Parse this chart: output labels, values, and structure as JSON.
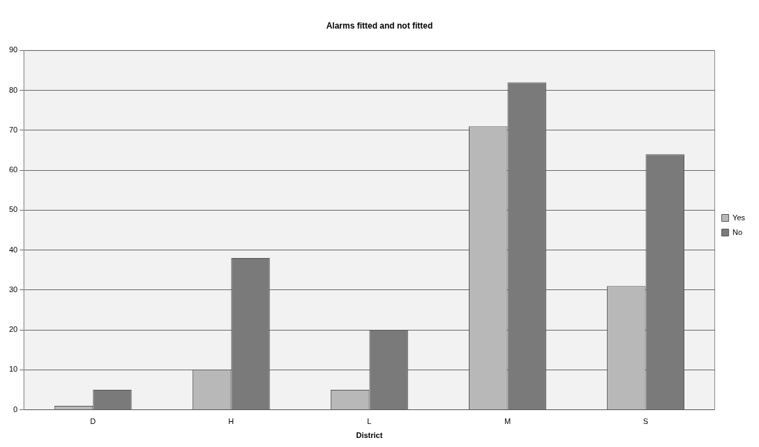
{
  "chart_data": {
    "type": "bar",
    "title": "Alarms fitted and not fitted",
    "xlabel": "District",
    "categories": [
      "D",
      "H",
      "L",
      "M",
      "S"
    ],
    "series": [
      {
        "name": "Yes",
        "color": "#b8b8b8",
        "values": [
          1,
          10,
          5,
          71,
          31
        ]
      },
      {
        "name": "No",
        "color": "#7a7a7a",
        "values": [
          5,
          38,
          20,
          82,
          64
        ]
      }
    ],
    "ylim": [
      0,
      90
    ],
    "yticks": [
      0,
      10,
      20,
      30,
      40,
      50,
      60,
      70,
      80,
      90
    ],
    "grid": "y",
    "legend": "right"
  }
}
